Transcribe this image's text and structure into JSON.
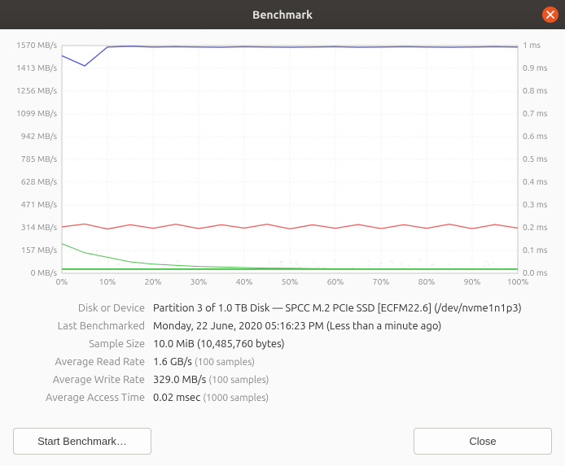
{
  "window": {
    "title": "Benchmark"
  },
  "chart": {
    "type": "line",
    "background_color": "#ffffff",
    "grid_color": "#d8d6d3",
    "text_color": "#888888",
    "label_fontsize": 10.5,
    "x": {
      "min": 0,
      "max": 100,
      "step": 10,
      "unit": "%"
    },
    "y_left": {
      "min": 0,
      "max": 1570,
      "step": 157,
      "unit": "MB/s"
    },
    "y_right": {
      "min": 0,
      "max": 1.0,
      "step": 0.1,
      "unit": "ms"
    },
    "series": {
      "read": {
        "color": "#5a5fd8",
        "width": 1.4,
        "values_mb_s": [
          1500,
          1430,
          1560,
          1565,
          1560,
          1562,
          1560,
          1558,
          1562,
          1560,
          1558,
          1560,
          1562,
          1558,
          1560,
          1562,
          1560,
          1558,
          1560,
          1562,
          1560
        ]
      },
      "write": {
        "color": "#e86a6a",
        "width": 1.4,
        "values_mb_s": [
          320,
          340,
          305,
          335,
          310,
          338,
          308,
          335,
          312,
          338,
          306,
          334,
          310,
          336,
          308,
          335,
          310,
          338,
          307,
          336,
          312
        ]
      },
      "access": {
        "color": "#4fc24f",
        "width": 1.0,
        "values_ms": [
          0.13,
          0.09,
          0.07,
          0.05,
          0.04,
          0.035,
          0.03,
          0.028,
          0.025,
          0.023,
          0.022,
          0.021,
          0.02,
          0.02,
          0.019,
          0.019,
          0.018,
          0.018,
          0.018,
          0.018,
          0.018
        ],
        "scatter_opacity": 0.25
      }
    }
  },
  "info": {
    "disk_label": "Disk or Device",
    "disk_value": "Partition 3 of 1.0 TB Disk — SPCC M.2 PCIe SSD [ECFM22.6] (/dev/nvme1n1p3)",
    "last_label": "Last Benchmarked",
    "last_value": "Monday, 22 June, 2020 05:16:23 PM (Less than a minute ago)",
    "sample_label": "Sample Size",
    "sample_value": "10.0 MiB (10,485,760 bytes)",
    "read_label": "Average Read Rate",
    "read_value": "1.6 GB/s",
    "read_note": "(100 samples)",
    "write_label": "Average Write Rate",
    "write_value": "329.0 MB/s",
    "write_note": "(100 samples)",
    "access_label": "Average Access Time",
    "access_value": "0.02 msec",
    "access_note": "(1000 samples)"
  },
  "buttons": {
    "start": "Start Benchmark…",
    "close": "Close"
  }
}
